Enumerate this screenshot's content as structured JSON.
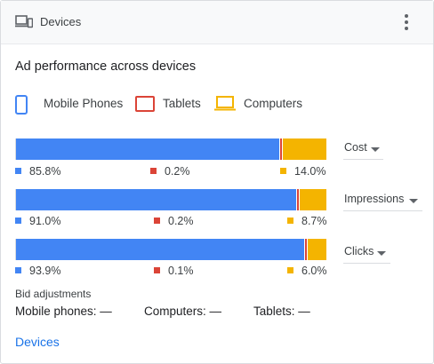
{
  "header": {
    "title": "Devices",
    "icon": "devices-icon",
    "menu_icon": "more-vert-icon"
  },
  "heading": "Ad performance across devices",
  "legend": [
    {
      "label": "Mobile Phones",
      "color": "#4285f4",
      "icon": "smartphone-icon"
    },
    {
      "label": "Tablets",
      "color": "#db4437",
      "icon": "tablet-icon"
    },
    {
      "label": "Computers",
      "color": "#f4b400",
      "icon": "laptop-icon"
    }
  ],
  "metrics": [
    {
      "label": "Cost",
      "mobile": 85.8,
      "tablet": 0.2,
      "computer": 14.0,
      "mobile_text": "85.8%",
      "tablet_text": "0.2%",
      "computer_text": "14.0%"
    },
    {
      "label": "Impressions",
      "mobile": 91.0,
      "tablet": 0.2,
      "computer": 8.7,
      "mobile_text": "91.0%",
      "tablet_text": "0.2%",
      "computer_text": "8.7%"
    },
    {
      "label": "Clicks",
      "mobile": 93.9,
      "tablet": 0.1,
      "computer": 6.0,
      "mobile_text": "93.9%",
      "tablet_text": "0.1%",
      "computer_text": "6.0%"
    }
  ],
  "bid_adjustments": {
    "title": "Bid adjustments",
    "mobile": "Mobile phones: —",
    "computers": "Computers: —",
    "tablets": "Tablets: —"
  },
  "link": "Devices",
  "colors": {
    "mobile": "#4285f4",
    "tablet": "#db4437",
    "computer": "#f4b400",
    "link": "#1a73e8"
  }
}
